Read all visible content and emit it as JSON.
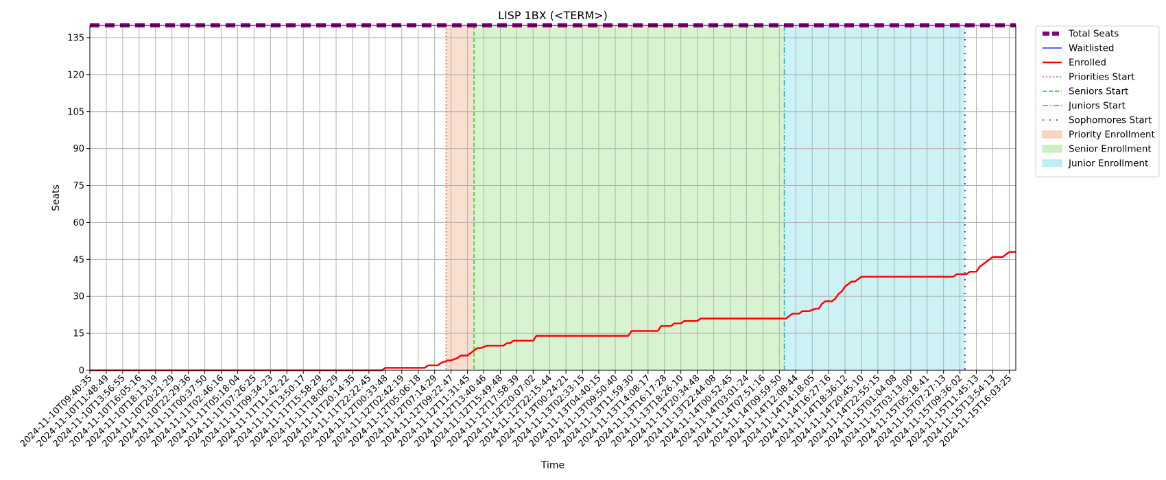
{
  "chart_data": {
    "type": "line",
    "title": "LISP 1BX (<TERM>)",
    "xlabel": "Time",
    "ylabel": "Seats",
    "ylim": [
      0,
      140
    ],
    "yticks": [
      0,
      15,
      30,
      45,
      60,
      75,
      90,
      105,
      120,
      135
    ],
    "grid": true,
    "legend_position": "outside-top-right",
    "x_tick_labels": [
      "2024-11-10T09:40:35",
      "2024-11-10T11:48:49",
      "2024-11-10T13:56:55",
      "2024-11-10T16:05:16",
      "2024-11-10T18:13:19",
      "2024-11-10T20:21:29",
      "2024-11-10T22:29:36",
      "2024-11-11T00:37:50",
      "2024-11-11T02:46:16",
      "2024-11-11T05:18:04",
      "2024-11-11T07:26:25",
      "2024-11-11T09:34:23",
      "2024-11-11T11:42:22",
      "2024-11-11T13:50:17",
      "2024-11-11T15:58:29",
      "2024-11-11T18:06:29",
      "2024-11-11T20:14:35",
      "2024-11-11T22:22:45",
      "2024-11-12T00:33:48",
      "2024-11-12T02:42:19",
      "2024-11-12T05:06:18",
      "2024-11-12T07:14:29",
      "2024-11-12T09:22:47",
      "2024-11-12T11:31:45",
      "2024-11-12T13:40:46",
      "2024-11-12T15:49:48",
      "2024-11-12T17:58:39",
      "2024-11-12T20:07:02",
      "2024-11-12T22:15:44",
      "2024-11-13T00:24:21",
      "2024-11-13T02:33:15",
      "2024-11-13T04:40:15",
      "2024-11-13T09:50:40",
      "2024-11-13T11:59:30",
      "2024-11-13T14:08:17",
      "2024-11-13T16:17:28",
      "2024-11-13T18:26:10",
      "2024-11-13T20:34:48",
      "2024-11-13T22:44:08",
      "2024-11-14T00:52:45",
      "2024-11-14T03:01:24",
      "2024-11-14T07:51:16",
      "2024-11-14T09:59:50",
      "2024-11-14T12:08:44",
      "2024-11-14T14:18:05",
      "2024-11-14T16:27:16",
      "2024-11-14T18:36:12",
      "2024-11-14T20:45:10",
      "2024-11-14T22:55:15",
      "2024-11-15T01:04:08",
      "2024-11-15T03:13:00",
      "2024-11-15T05:18:41",
      "2024-11-15T07:27:13",
      "2024-11-15T09:36:02",
      "2024-11-15T11:45:13",
      "2024-11-15T13:54:13",
      "2024-11-15T16:03:25"
    ],
    "x_range": [
      0,
      56.4
    ],
    "series": [
      {
        "name": "Total Seats",
        "style": "dashed-thick",
        "color": "#800080",
        "x": [
          0,
          56.4
        ],
        "y": [
          140,
          140
        ]
      },
      {
        "name": "Waitlisted",
        "style": "solid-thin",
        "color": "#0000ff",
        "x": [],
        "y": []
      },
      {
        "name": "Enrolled",
        "style": "solid",
        "color": "#ff0000",
        "x": [
          0,
          17.8,
          18.0,
          20.4,
          20.6,
          21.2,
          21.4,
          21.8,
          22.0,
          22.4,
          22.6,
          23.0,
          23.2,
          23.6,
          23.8,
          24.2,
          24.4,
          25.2,
          25.4,
          25.6,
          25.8,
          27.0,
          27.2,
          32.8,
          33.0,
          34.6,
          34.8,
          35.4,
          35.6,
          36.0,
          36.2,
          37.0,
          37.2,
          42.4,
          42.6,
          42.8,
          43.2,
          43.4,
          43.8,
          44.2,
          44.4,
          44.6,
          44.8,
          45.2,
          45.4,
          45.6,
          45.8,
          46.0,
          46.2,
          46.4,
          46.6,
          46.8,
          47.0,
          52.6,
          52.8,
          53.4,
          53.6,
          54.0,
          54.2,
          54.6,
          55.0,
          55.6,
          56.0,
          56.4
        ],
        "y": [
          0,
          0,
          1,
          1,
          2,
          2,
          3,
          4,
          4,
          5,
          6,
          6,
          7,
          9,
          9,
          10,
          10,
          10,
          11,
          11,
          12,
          12,
          14,
          14,
          16,
          16,
          18,
          18,
          19,
          19,
          20,
          20,
          21,
          21,
          22,
          23,
          23,
          24,
          24,
          25,
          25,
          27,
          28,
          28,
          29,
          31,
          32,
          34,
          35,
          36,
          36,
          37,
          38,
          38,
          39,
          39,
          40,
          40,
          42,
          44,
          46,
          46,
          48,
          48
        ]
      }
    ],
    "vertical_lines": [
      {
        "name": "Priorities Start",
        "x": 21.7,
        "color": "#ff5a1f",
        "style": "dotted"
      },
      {
        "name": "Seniors Start",
        "x": 23.4,
        "color": "#2ecc20",
        "style": "dashed"
      },
      {
        "name": "Juniors Start",
        "x": 42.3,
        "color": "#00bcd4",
        "style": "dashdot"
      },
      {
        "name": "Sophomores Start",
        "x": 53.3,
        "color": "#3d2bff",
        "style": "dots"
      }
    ],
    "shaded_regions": [
      {
        "name": "Priority Enrollment",
        "x0": 21.7,
        "x1": 23.4,
        "color": "#f4c4a8"
      },
      {
        "name": "Senior Enrollment",
        "x0": 23.4,
        "x1": 42.3,
        "color": "#b8eaa8"
      },
      {
        "name": "Junior Enrollment",
        "x0": 42.3,
        "x1": 53.3,
        "color": "#a4e8ec"
      }
    ]
  }
}
